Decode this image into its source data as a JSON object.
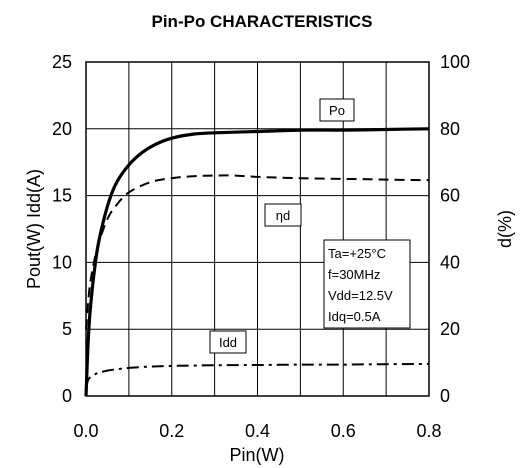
{
  "chart_data": {
    "type": "line",
    "title": "Pin-Po CHARACTERISTICS",
    "xlabel": "Pin(W)",
    "ylabel_left": "Pout(W)  Idd(A)",
    "ylabel_right": "d(%)",
    "xlim": [
      0,
      0.8
    ],
    "ylim_left": [
      0,
      25
    ],
    "ylim_right": [
      0,
      100
    ],
    "x_ticks": [
      "0.0",
      "0.2",
      "0.4",
      "0.6",
      "0.8"
    ],
    "y_left_ticks": [
      "0",
      "5",
      "10",
      "15",
      "20",
      "25"
    ],
    "y_right_ticks": [
      "0",
      "20",
      "40",
      "60",
      "80",
      "100"
    ],
    "grid": true,
    "series": [
      {
        "name": "Po",
        "axis": "left",
        "style": "solid",
        "x": [
          0,
          0.005,
          0.01,
          0.02,
          0.03,
          0.05,
          0.07,
          0.1,
          0.13,
          0.16,
          0.2,
          0.25,
          0.3,
          0.4,
          0.5,
          0.6,
          0.7,
          0.8
        ],
        "y": [
          0,
          4.0,
          6.5,
          9.5,
          11.6,
          14.2,
          15.9,
          17.3,
          18.2,
          18.8,
          19.3,
          19.6,
          19.7,
          19.8,
          19.9,
          19.9,
          19.95,
          20.0
        ]
      },
      {
        "name": "ηd",
        "axis": "right",
        "style": "dashed",
        "x": [
          0,
          0.005,
          0.01,
          0.02,
          0.03,
          0.05,
          0.07,
          0.1,
          0.15,
          0.2,
          0.25,
          0.3,
          0.35,
          0.4,
          0.5,
          0.6,
          0.7,
          0.8
        ],
        "y": [
          20,
          28,
          34,
          41,
          46,
          53,
          57,
          61,
          64,
          65.2,
          65.8,
          66,
          66,
          65.6,
          65.2,
          65,
          64.8,
          64.6
        ]
      },
      {
        "name": "Idd",
        "axis": "left",
        "style": "dashdot",
        "x": [
          0,
          0.005,
          0.01,
          0.02,
          0.03,
          0.05,
          0.07,
          0.1,
          0.15,
          0.2,
          0.3,
          0.4,
          0.5,
          0.6,
          0.7,
          0.8
        ],
        "y": [
          0.6,
          1.2,
          1.4,
          1.6,
          1.75,
          1.9,
          2.0,
          2.1,
          2.2,
          2.25,
          2.3,
          2.32,
          2.35,
          2.35,
          2.38,
          2.4
        ]
      }
    ],
    "series_tags": {
      "po": "Po",
      "nd": "ηd",
      "idd": "Idd"
    },
    "conditions": [
      "Ta=+25°C",
      "f=30MHz",
      "Vdd=12.5V",
      "Idq=0.5A"
    ]
  }
}
